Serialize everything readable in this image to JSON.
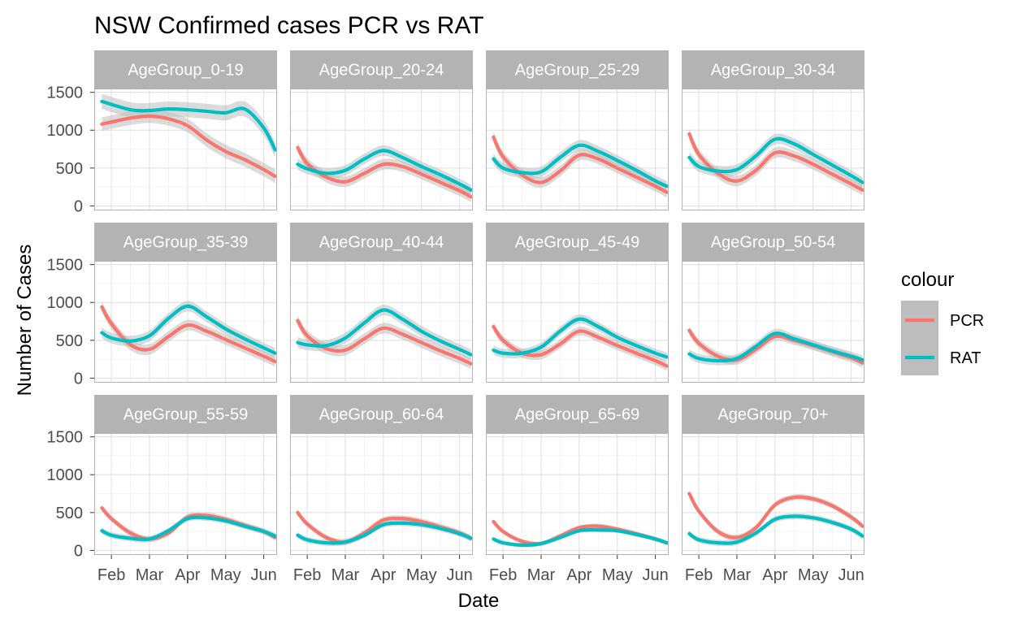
{
  "chart_data": {
    "type": "line",
    "title": "NSW Confirmed cases PCR vs RAT",
    "xlabel": "Date",
    "ylabel": "Number of Cases",
    "x_tick_labels": [
      "Feb",
      "Mar",
      "Apr",
      "May",
      "Jun"
    ],
    "x_ticks": [
      1,
      2,
      3,
      4,
      5
    ],
    "xlim": [
      0.55,
      5.35
    ],
    "y_ticks": [
      0,
      500,
      1000,
      1500
    ],
    "ylim": [
      -60,
      1550
    ],
    "grid": true,
    "facet_layout": {
      "rows": 3,
      "cols": 4
    },
    "legend": {
      "title": "colour",
      "placement": "right",
      "entries": [
        {
          "name": "PCR",
          "color": "#F8766D"
        },
        {
          "name": "RAT",
          "color": "#00BFC4"
        }
      ]
    },
    "ribbon_color": "#bdbdbd",
    "strip_color": "#b3b3b3",
    "panels": [
      {
        "label": "AgeGroup_0-19",
        "x": [
          0.75,
          1.5,
          2.0,
          2.5,
          3.0,
          3.5,
          4.0,
          4.5,
          5.0,
          5.3
        ],
        "series": [
          {
            "name": "PCR",
            "values": [
              1080,
              1160,
              1185,
              1150,
              1060,
              870,
              720,
              610,
              480,
              390
            ],
            "band": 90
          },
          {
            "name": "RAT",
            "values": [
              1380,
              1270,
              1260,
              1280,
              1270,
              1250,
              1230,
              1280,
              1030,
              740
            ],
            "band": 100
          }
        ]
      },
      {
        "label": "AgeGroup_20-24",
        "x": [
          0.75,
          1.0,
          1.5,
          2.0,
          2.5,
          3.0,
          3.5,
          4.0,
          4.5,
          5.0,
          5.3
        ],
        "series": [
          {
            "name": "PCR",
            "values": [
              770,
              560,
              380,
              320,
              430,
              550,
              520,
              420,
              310,
              200,
              120
            ],
            "band": 70
          },
          {
            "name": "RAT",
            "values": [
              550,
              490,
              430,
              470,
              620,
              730,
              640,
              520,
              410,
              290,
              210
            ],
            "band": 70
          }
        ]
      },
      {
        "label": "AgeGroup_25-29",
        "x": [
          0.75,
          1.0,
          1.5,
          2.0,
          2.5,
          3.0,
          3.5,
          4.0,
          4.5,
          5.0,
          5.3
        ],
        "series": [
          {
            "name": "PCR",
            "values": [
              910,
              650,
              410,
              310,
              460,
              670,
              620,
              500,
              380,
              260,
              180
            ],
            "band": 70
          },
          {
            "name": "RAT",
            "values": [
              620,
              500,
              440,
              450,
              640,
              800,
              720,
              600,
              470,
              330,
              260
            ],
            "band": 70
          }
        ]
      },
      {
        "label": "AgeGroup_30-34",
        "x": [
          0.75,
          1.0,
          1.5,
          2.0,
          2.5,
          3.0,
          3.5,
          4.0,
          4.5,
          5.0,
          5.3
        ],
        "series": [
          {
            "name": "PCR",
            "values": [
              950,
              680,
              430,
              330,
              470,
              700,
              660,
              550,
              420,
              290,
              210
            ],
            "band": 70
          },
          {
            "name": "RAT",
            "values": [
              640,
              520,
              460,
              480,
              660,
              880,
              820,
              680,
              540,
              400,
              310
            ],
            "band": 70
          }
        ]
      },
      {
        "label": "AgeGroup_35-39",
        "x": [
          0.75,
          1.0,
          1.5,
          2.0,
          2.5,
          3.0,
          3.5,
          4.0,
          4.5,
          5.0,
          5.3
        ],
        "series": [
          {
            "name": "PCR",
            "values": [
              940,
              720,
              440,
              380,
              550,
              700,
              620,
              510,
              400,
              290,
              220
            ],
            "band": 70
          },
          {
            "name": "RAT",
            "values": [
              600,
              530,
              490,
              560,
              790,
              950,
              810,
              650,
              520,
              400,
              330
            ],
            "band": 70
          }
        ]
      },
      {
        "label": "AgeGroup_40-44",
        "x": [
          0.75,
          1.0,
          1.5,
          2.0,
          2.5,
          3.0,
          3.5,
          4.0,
          4.5,
          5.0,
          5.3
        ],
        "series": [
          {
            "name": "PCR",
            "values": [
              760,
              560,
              390,
              370,
              520,
              660,
              580,
              470,
              360,
              260,
              190
            ],
            "band": 70
          },
          {
            "name": "RAT",
            "values": [
              470,
              440,
              430,
              530,
              730,
              900,
              780,
              620,
              490,
              380,
              310
            ],
            "band": 70
          }
        ]
      },
      {
        "label": "AgeGroup_45-49",
        "x": [
          0.75,
          1.0,
          1.5,
          2.0,
          2.5,
          3.0,
          3.5,
          4.0,
          4.5,
          5.0,
          5.3
        ],
        "series": [
          {
            "name": "PCR",
            "values": [
              680,
              500,
              330,
              310,
              450,
              620,
              540,
              430,
              330,
              230,
              160
            ],
            "band": 60
          },
          {
            "name": "RAT",
            "values": [
              370,
              330,
              330,
              410,
              620,
              780,
              680,
              540,
              430,
              330,
              280
            ],
            "band": 60
          }
        ]
      },
      {
        "label": "AgeGroup_50-54",
        "x": [
          0.75,
          1.0,
          1.5,
          2.0,
          2.5,
          3.0,
          3.5,
          4.0,
          4.5,
          5.0,
          5.3
        ],
        "series": [
          {
            "name": "PCR",
            "values": [
              630,
              460,
              290,
              240,
              380,
              550,
              500,
              430,
              350,
              270,
              200
            ],
            "band": 60
          },
          {
            "name": "RAT",
            "values": [
              320,
              260,
              230,
              260,
              420,
              590,
              520,
              440,
              360,
              290,
              240
            ],
            "band": 60
          }
        ]
      },
      {
        "label": "AgeGroup_55-59",
        "x": [
          0.75,
          1.0,
          1.5,
          2.0,
          2.5,
          3.0,
          3.5,
          4.0,
          4.5,
          5.0,
          5.3
        ],
        "series": [
          {
            "name": "PCR",
            "values": [
              560,
              420,
              230,
              150,
              230,
              440,
              460,
              410,
              330,
              250,
              170
            ],
            "band": 40
          },
          {
            "name": "RAT",
            "values": [
              260,
              200,
              160,
              150,
              260,
              420,
              430,
              390,
              320,
              250,
              190
            ],
            "band": 40
          }
        ]
      },
      {
        "label": "AgeGroup_60-64",
        "x": [
          0.75,
          1.0,
          1.5,
          2.0,
          2.5,
          3.0,
          3.5,
          4.0,
          4.5,
          5.0,
          5.3
        ],
        "series": [
          {
            "name": "PCR",
            "values": [
              500,
              350,
              170,
              110,
              230,
              400,
              420,
              380,
              310,
              230,
              160
            ],
            "band": 40
          },
          {
            "name": "RAT",
            "values": [
              200,
              140,
              100,
              110,
              200,
              340,
              360,
              340,
              290,
              220,
              160
            ],
            "band": 40
          }
        ]
      },
      {
        "label": "AgeGroup_65-69",
        "x": [
          0.75,
          1.0,
          1.5,
          2.0,
          2.5,
          3.0,
          3.5,
          4.0,
          4.5,
          5.0,
          5.3
        ],
        "series": [
          {
            "name": "PCR",
            "values": [
              380,
              250,
              120,
              90,
              190,
              300,
              320,
              280,
              220,
              150,
              100
            ],
            "band": 30
          },
          {
            "name": "RAT",
            "values": [
              150,
              100,
              70,
              90,
              170,
              260,
              270,
              260,
              210,
              150,
              100
            ],
            "band": 30
          }
        ]
      },
      {
        "label": "AgeGroup_70+",
        "x": [
          0.75,
          1.0,
          1.5,
          2.0,
          2.5,
          3.0,
          3.5,
          4.0,
          4.5,
          5.0,
          5.3
        ],
        "series": [
          {
            "name": "PCR",
            "values": [
              750,
              520,
              250,
              170,
              300,
              600,
              700,
              680,
              590,
              440,
              320
            ],
            "band": 40
          },
          {
            "name": "RAT",
            "values": [
              220,
              140,
              100,
              110,
              230,
              410,
              450,
              430,
              370,
              280,
              190
            ],
            "band": 40
          }
        ]
      }
    ]
  }
}
